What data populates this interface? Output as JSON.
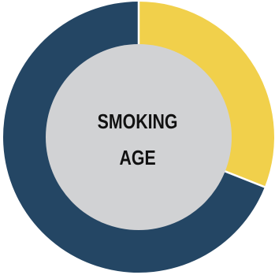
{
  "chart_data": {
    "type": "pie",
    "donut": true,
    "center_text": [
      "SMOKING",
      "AGE"
    ],
    "slices": [
      {
        "value": 31,
        "color": "#F1D04B"
      },
      {
        "value": 69,
        "color": "#244664"
      }
    ],
    "center_color": "#D1D2D4",
    "separator_color": "#FFFFFF"
  }
}
